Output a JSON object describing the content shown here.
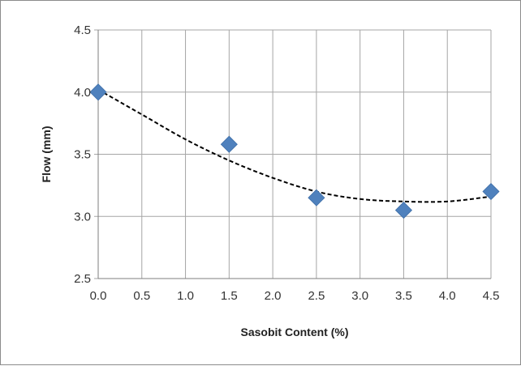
{
  "chart_data": {
    "type": "scatter",
    "title": "",
    "xlabel": "Sasobit Content (%)",
    "ylabel": "Flow (mm)",
    "xlim": [
      0,
      4.5
    ],
    "ylim": [
      2.5,
      4.5
    ],
    "x_ticks": [
      "0.0",
      "0.5",
      "1.0",
      "1.5",
      "2.0",
      "2.5",
      "3.0",
      "3.5",
      "4.0",
      "4.5"
    ],
    "y_ticks": [
      "2.5",
      "3.0",
      "3.5",
      "4.0",
      "4.5"
    ],
    "grid": true,
    "legend": "none",
    "series": [
      {
        "marker": "diamond",
        "color": "#4f81bd",
        "x": [
          0.0,
          1.5,
          2.5,
          3.5,
          4.5
        ],
        "y": [
          4.0,
          3.58,
          3.15,
          3.05,
          3.2
        ]
      }
    ],
    "trendline": {
      "style": "dashed",
      "color": "#000000",
      "type": "polynomial",
      "x": [
        0.0,
        0.5,
        1.0,
        1.5,
        2.0,
        2.5,
        3.0,
        3.5,
        4.0,
        4.5
      ],
      "y": [
        4.02,
        3.82,
        3.62,
        3.45,
        3.31,
        3.2,
        3.14,
        3.12,
        3.12,
        3.16
      ]
    }
  }
}
